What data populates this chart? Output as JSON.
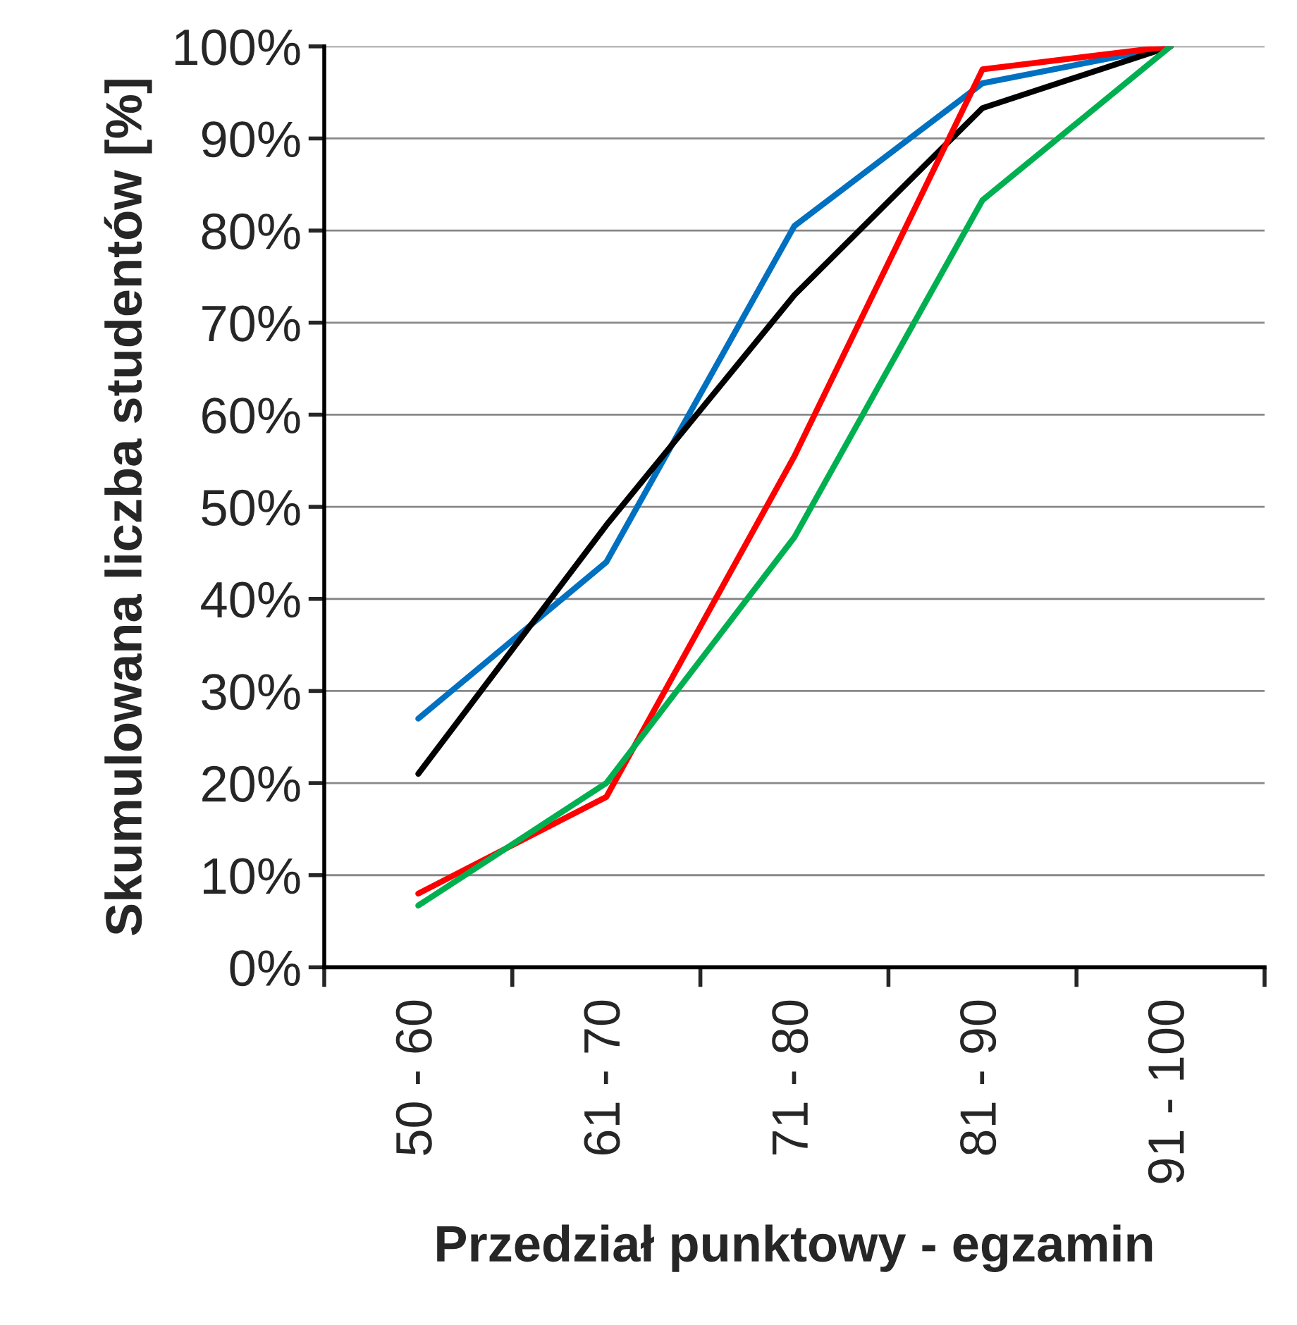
{
  "chart_data": {
    "type": "line",
    "xlabel": "Przedział punktowy - egzamin",
    "ylabel": "Skumulowana liczba studentów [%]",
    "categories": [
      "50 - 60",
      "61 - 70",
      "71 - 80",
      "81 - 90",
      "91 - 100"
    ],
    "series": [
      {
        "color": "#0070c0",
        "values": [
          27,
          44,
          80.5,
          96,
          100
        ]
      },
      {
        "color": "#000000",
        "values": [
          21,
          48,
          73,
          93.3,
          100
        ]
      },
      {
        "color": "#ff0000",
        "values": [
          8,
          18.5,
          55.5,
          97.5,
          100
        ]
      },
      {
        "color": "#00b050",
        "values": [
          6.7,
          20,
          46.7,
          83.3,
          100
        ]
      }
    ],
    "ylim": [
      0,
      100
    ],
    "yticks": [
      {
        "value": 0,
        "label": "0%"
      },
      {
        "value": 10,
        "label": "10%"
      },
      {
        "value": 20,
        "label": "20%"
      },
      {
        "value": 30,
        "label": "30%"
      },
      {
        "value": 40,
        "label": "40%"
      },
      {
        "value": 50,
        "label": "50%"
      },
      {
        "value": 60,
        "label": "60%"
      },
      {
        "value": 70,
        "label": "70%"
      },
      {
        "value": 80,
        "label": "80%"
      },
      {
        "value": 90,
        "label": "90%"
      },
      {
        "value": 100,
        "label": "100%"
      }
    ],
    "grid": "y",
    "marker": "none",
    "line_style": "solid"
  }
}
